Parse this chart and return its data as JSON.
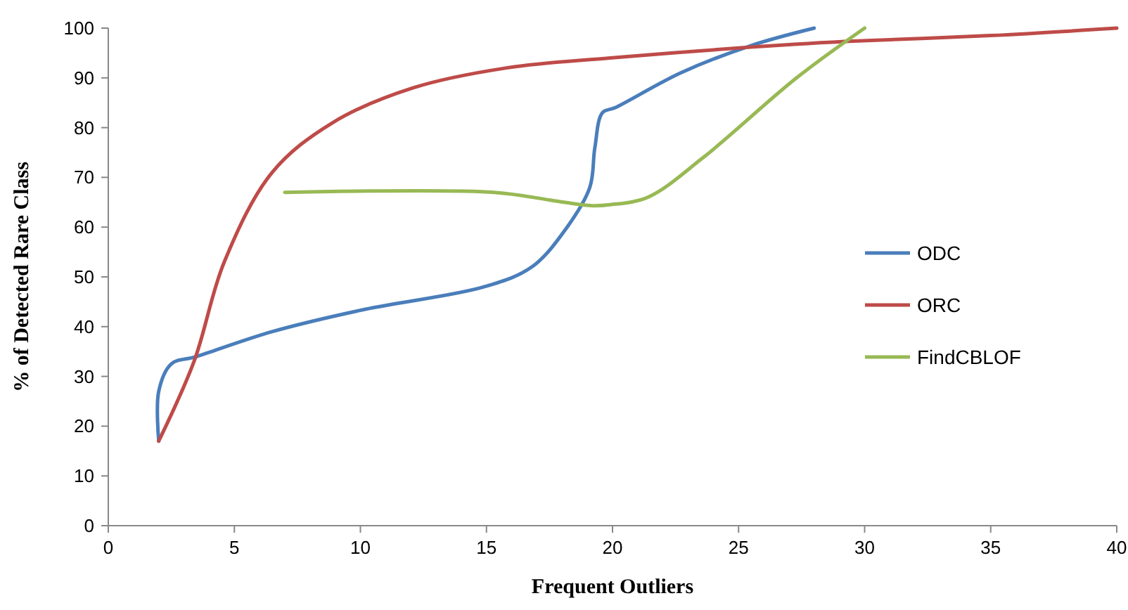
{
  "chart_data": {
    "type": "line",
    "xlabel": "Frequent Outliers",
    "ylabel": "% of Detected Rare Class",
    "xlim": [
      0,
      40
    ],
    "xticks": [
      0,
      5,
      10,
      15,
      20,
      25,
      30,
      35,
      40
    ],
    "ylim": [
      0,
      100
    ],
    "yticks": [
      0,
      10,
      20,
      30,
      40,
      50,
      60,
      70,
      80,
      90,
      100
    ],
    "grid": false,
    "legend": "right",
    "marker": "none",
    "line_style": "solid",
    "series": [
      {
        "name": "ODC",
        "color": "#4a7ebb",
        "x": [
          2,
          2,
          2.5,
          3.5,
          6.5,
          10.2,
          14.9,
          16.8,
          18.2,
          19.1,
          19.3,
          19.6,
          20.1,
          22.7,
          25.5,
          28
        ],
        "values": [
          17,
          27,
          32.5,
          34,
          39,
          43.5,
          48,
          52,
          60,
          68,
          76,
          83,
          84,
          91,
          96.5,
          100
        ]
      },
      {
        "name": "ORC",
        "color": "#be4b48",
        "x": [
          2,
          3.4,
          4.6,
          6.5,
          8.9,
          12.1,
          15.8,
          19.9,
          25,
          29.2,
          35,
          40
        ],
        "values": [
          17,
          33,
          53,
          71,
          81,
          88,
          92,
          94,
          96,
          97.3,
          98.5,
          100
        ]
      },
      {
        "name": "FindCBLOF",
        "color": "#98b954",
        "x": [
          7,
          15.3,
          17.7,
          19.2,
          19.9,
          21.4,
          23.6,
          27.3,
          30
        ],
        "values": [
          67,
          67,
          65.3,
          64.3,
          64.5,
          66,
          74,
          90,
          100
        ]
      }
    ]
  }
}
